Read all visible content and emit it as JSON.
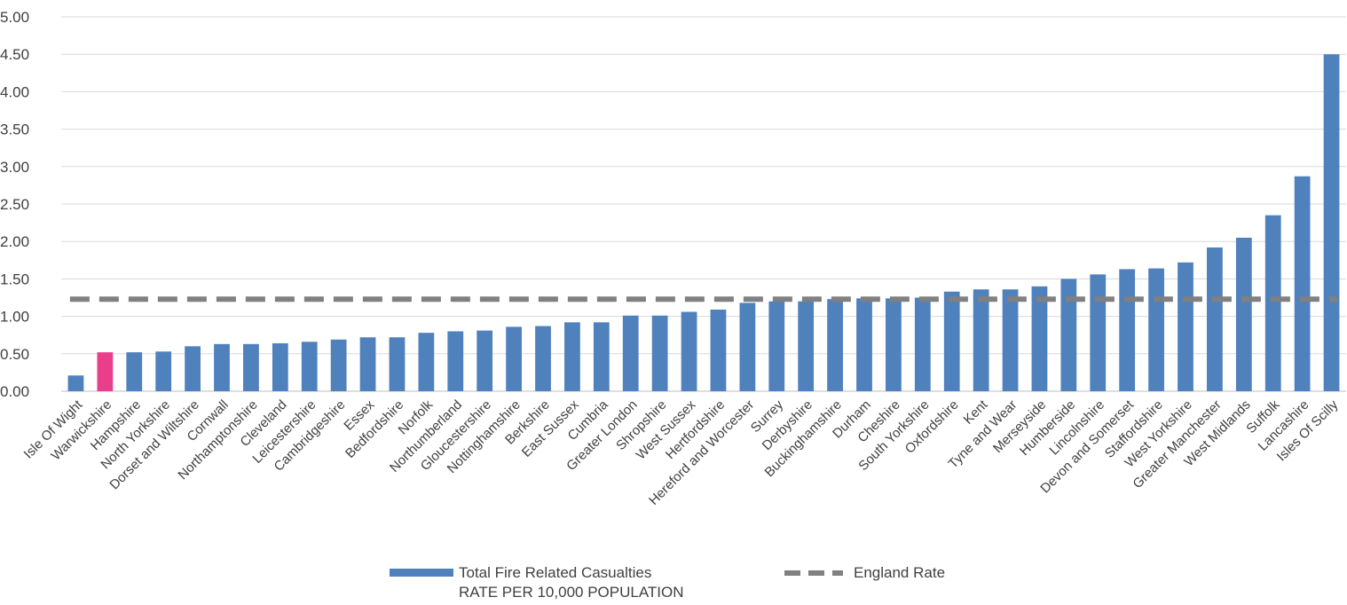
{
  "chart_data": {
    "type": "bar",
    "categories": [
      "Isle Of Wight",
      "Warwickshire",
      "Hampshire",
      "North Yorkshire",
      "Dorset and Wiltshire",
      "Cornwall",
      "Northamptonshire",
      "Cleveland",
      "Leicestershire",
      "Cambridgeshire",
      "Essex",
      "Bedfordshire",
      "Norfolk",
      "Northumberland",
      "Gloucestershire",
      "Nottinghamshire",
      "Berkshire",
      "East Sussex",
      "Cumbria",
      "Greater London",
      "Shropshire",
      "West Sussex",
      "Hertfordshire",
      "Hereford and Worcester",
      "Surrey",
      "Derbyshire",
      "Buckinghamshire",
      "Durham",
      "Cheshire",
      "South Yorkshire",
      "Oxfordshire",
      "Kent",
      "Tyne and Wear",
      "Merseyside",
      "Humberside",
      "Lincolnshire",
      "Devon and Somerset",
      "Staffordshire",
      "West Yorkshire",
      "Greater Manchester",
      "West Midlands",
      "Suffolk",
      "Lancashire",
      "Isles Of Scilly"
    ],
    "values": [
      0.21,
      0.52,
      0.52,
      0.53,
      0.6,
      0.63,
      0.63,
      0.64,
      0.66,
      0.69,
      0.72,
      0.72,
      0.78,
      0.8,
      0.81,
      0.86,
      0.87,
      0.92,
      0.92,
      1.01,
      1.01,
      1.06,
      1.09,
      1.18,
      1.2,
      1.2,
      1.23,
      1.24,
      1.24,
      1.25,
      1.33,
      1.36,
      1.36,
      1.4,
      1.5,
      1.56,
      1.63,
      1.64,
      1.72,
      1.92,
      2.05,
      2.35,
      2.87,
      4.5
    ],
    "highlight_index": 1,
    "series": [
      {
        "name": "Total Fire Related Casualties",
        "name_line2": "RATE PER 10,000 POPULATION",
        "color": "#4f81bd"
      },
      {
        "name": "England Rate",
        "value": 1.23,
        "color": "#808080",
        "style": "dashed"
      }
    ],
    "highlight_color": "#e83e8c",
    "ylim": [
      0,
      5
    ],
    "yticks": [
      "0.00",
      "0.50",
      "1.00",
      "1.50",
      "2.00",
      "2.50",
      "3.00",
      "3.50",
      "4.00",
      "4.50",
      "5.00"
    ],
    "grid": true,
    "legend_position": "bottom"
  }
}
